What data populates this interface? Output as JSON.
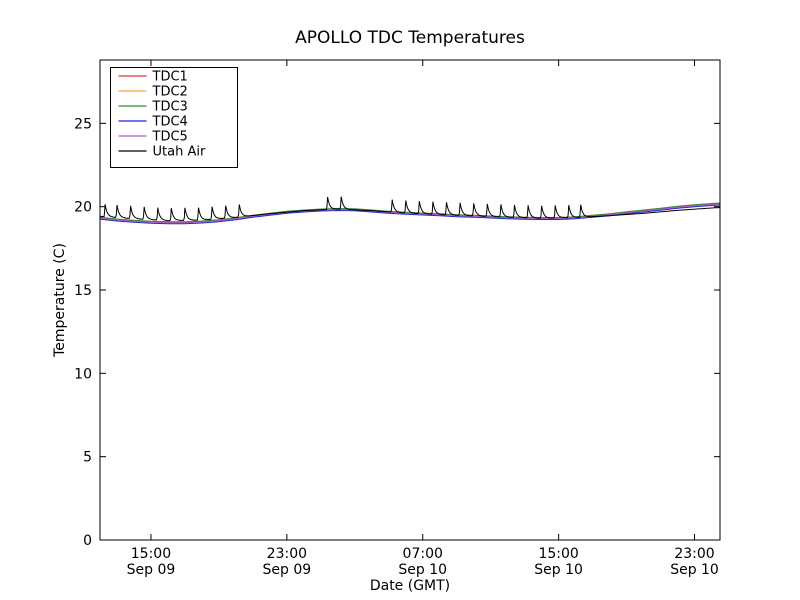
{
  "chart_data": {
    "type": "line",
    "title": "APOLLO TDC Temperatures",
    "xlabel": "Date (GMT)",
    "ylabel": "Temperature (C)",
    "x_unit": "hours since Sep 09 12:00 GMT",
    "xlim": [
      0,
      36.5
    ],
    "ylim": [
      0,
      28.8
    ],
    "grid": false,
    "plot_bg": "#ffffff",
    "axis_color": "#000000",
    "yticks": [
      0,
      5,
      10,
      15,
      20,
      25
    ],
    "xticks": [
      {
        "t": 3,
        "line1": "15:00",
        "line2": "Sep 09"
      },
      {
        "t": 11,
        "line1": "23:00",
        "line2": "Sep 09"
      },
      {
        "t": 19,
        "line1": "07:00",
        "line2": "Sep 10"
      },
      {
        "t": 27,
        "line1": "15:00",
        "line2": "Sep 10"
      },
      {
        "t": 35,
        "line1": "23:00",
        "line2": "Sep 10"
      }
    ],
    "legend": {
      "position": "upper left"
    },
    "baseline_x": [
      0,
      1,
      2,
      3,
      4,
      5,
      6,
      7,
      8,
      9,
      10,
      11,
      12,
      13,
      14,
      15,
      16,
      17,
      18,
      19,
      20,
      21,
      22,
      23,
      24,
      25,
      26,
      27,
      28,
      29,
      30,
      31,
      32,
      33,
      34,
      35,
      36,
      36.5
    ],
    "base_y": [
      19.3,
      19.2,
      19.12,
      19.07,
      19.04,
      19.04,
      19.08,
      19.16,
      19.28,
      19.42,
      19.55,
      19.66,
      19.74,
      19.8,
      19.83,
      19.81,
      19.74,
      19.66,
      19.6,
      19.56,
      19.51,
      19.46,
      19.42,
      19.38,
      19.34,
      19.31,
      19.29,
      19.29,
      19.33,
      19.42,
      19.52,
      19.63,
      19.74,
      19.85,
      19.96,
      20.06,
      20.13,
      20.16
    ],
    "series": [
      {
        "name": "TDC1",
        "color": "#e03232",
        "offset": 0.03
      },
      {
        "name": "TDC2",
        "color": "#ffa43c",
        "offset": -0.03
      },
      {
        "name": "TDC3",
        "color": "#2f8f2f",
        "offset": 0.06
      },
      {
        "name": "TDC4",
        "color": "#2222dd",
        "offset": -0.06
      },
      {
        "name": "TDC5",
        "color": "#a85cc8",
        "offset": 0.0
      }
    ],
    "utah_air": {
      "name": "Utah Air",
      "color": "#000000",
      "x": [
        0,
        2,
        4,
        6,
        8,
        10,
        12,
        14,
        16,
        18,
        20,
        22,
        24,
        26,
        28,
        30,
        32,
        34,
        36,
        36.5
      ],
      "y": [
        19.42,
        19.28,
        19.16,
        19.2,
        19.36,
        19.58,
        19.76,
        19.86,
        19.76,
        19.62,
        19.53,
        19.45,
        19.37,
        19.31,
        19.35,
        19.46,
        19.6,
        19.78,
        19.92,
        19.95
      ],
      "spike_times": [
        0.3,
        1.0,
        1.8,
        2.6,
        3.4,
        4.2,
        5.0,
        5.8,
        6.6,
        7.4,
        8.2,
        13.4,
        14.2,
        17.2,
        18.0,
        18.8,
        19.6,
        20.4,
        21.2,
        22.0,
        22.8,
        23.6,
        24.4,
        25.2,
        26.0,
        26.8,
        27.6,
        28.3
      ],
      "spike_height": 0.75,
      "spike_rise": 0.05,
      "spike_decay_tau": 0.12,
      "spike_cutoff": 0.5
    }
  }
}
